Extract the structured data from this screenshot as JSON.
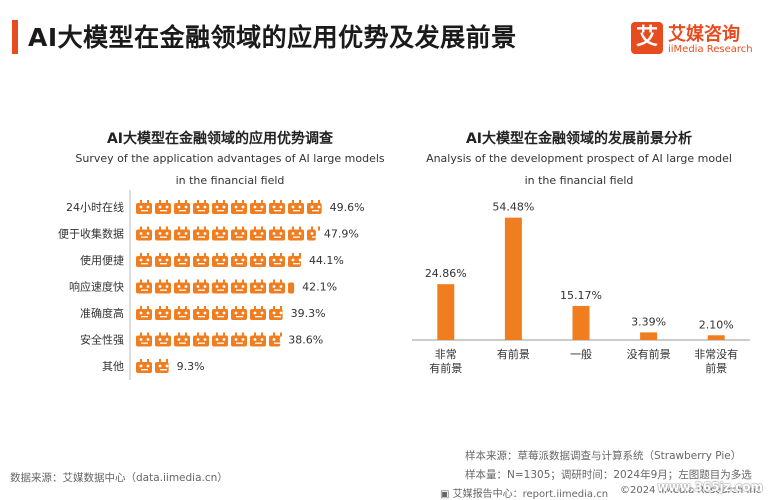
{
  "header": {
    "title": "AI大模型在金融领域的应用优势及发展前景",
    "accent_color": "#e84c1e",
    "logo": {
      "mark": "艾",
      "name_cn": "艾媒咨询",
      "name_en": "iiMedia Research",
      "color": "#e84c1e"
    }
  },
  "chart_data": [
    {
      "type": "bar",
      "orientation": "horizontal",
      "title": "AI大模型在金融领域的应用优势调查",
      "subtitle_line1": "Survey of the application advantages of AI large models",
      "subtitle_line2": "in the financial field",
      "categories": [
        "24小时在线",
        "便于收集数据",
        "使用便捷",
        "响应速度快",
        "准确度高",
        "安全性强",
        "其他"
      ],
      "values": [
        49.6,
        47.9,
        44.1,
        42.1,
        39.3,
        38.6,
        9.3
      ],
      "labels": [
        "49.6%",
        "47.9%",
        "44.1%",
        "42.1%",
        "39.3%",
        "38.6%",
        "9.3%"
      ],
      "unit": "%",
      "icon": "robot-icon",
      "color": "#f07d20"
    },
    {
      "type": "bar",
      "orientation": "vertical",
      "title": "AI大模型在金融领域的发展前景分析",
      "subtitle_line1": "Analysis of the development prospect of AI large model",
      "subtitle_line2": "in the financial field",
      "categories": [
        [
          "非常",
          "有前景"
        ],
        [
          "有前景"
        ],
        [
          "一般"
        ],
        [
          "没有前景"
        ],
        [
          "非常没有",
          "前景"
        ]
      ],
      "values": [
        24.86,
        54.48,
        15.17,
        3.39,
        2.1
      ],
      "labels": [
        "24.86%",
        "54.48%",
        "15.17%",
        "3.39%",
        "2.10%"
      ],
      "ylim": [
        0,
        60
      ],
      "color": "#f07d20"
    }
  ],
  "footer": {
    "source": "数据来源：艾媒数据中心（data.iimedia.cn）",
    "sample_source": "样本来源：草莓派数据调查与计算系统（Strawberry Pie）",
    "sample_info": "样本量：N=1305；调研时间：2024年9月；左图题目为多选",
    "report_center": "艾媒报告中心：report.iimedia.cn",
    "copyright": "©2024  iiMedia Research Inc",
    "watermark": "www.365jz.com"
  }
}
